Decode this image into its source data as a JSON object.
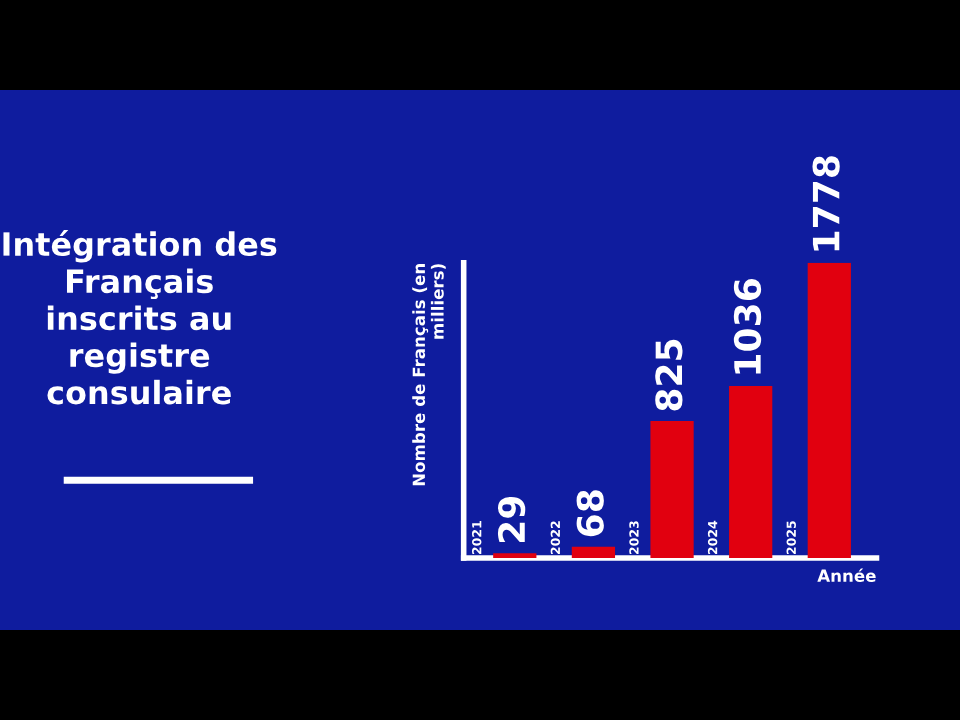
{
  "chart_data": {
    "type": "bar",
    "title": "Intégration des\nFrançais\ninscrits au\nregistre\nconsulaire",
    "xlabel": "Année",
    "ylabel": "Nombre de Français (en\nmilliers)",
    "categories": [
      "2021",
      "2022",
      "2023",
      "2024",
      "2025"
    ],
    "values": [
      29,
      68,
      825,
      1036,
      1778
    ],
    "color": "#e1000f",
    "data_labels": true,
    "legend": false
  }
}
